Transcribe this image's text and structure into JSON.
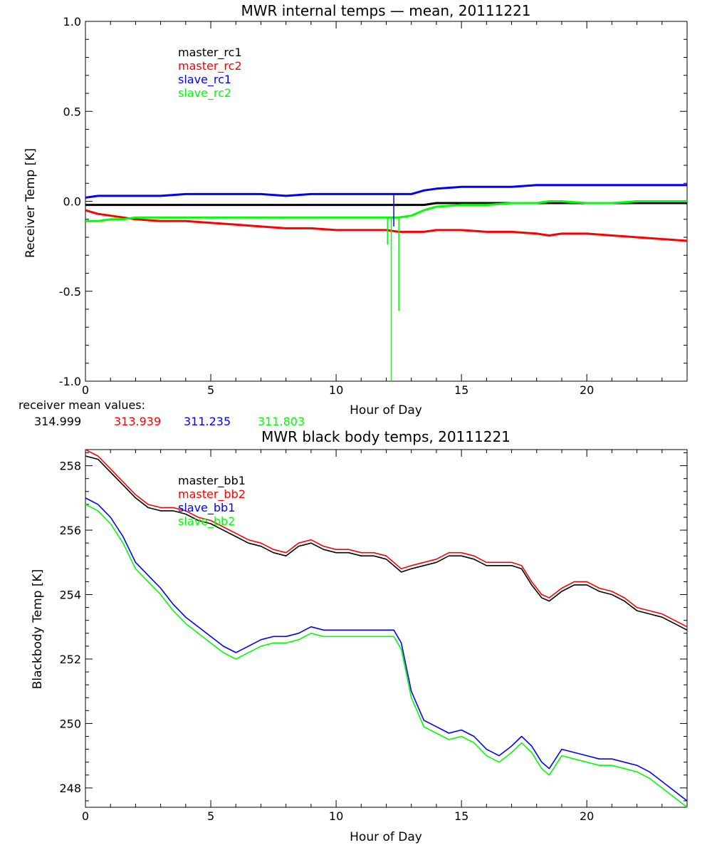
{
  "chart_data": [
    {
      "type": "line",
      "title": "MWR internal temps — mean, 20111221",
      "xlabel": "Hour of Day",
      "ylabel": "Receiver Temp [K]",
      "xlim": [
        0,
        24
      ],
      "ylim": [
        -1.0,
        1.0
      ],
      "xticks": [
        0,
        5,
        10,
        15,
        20
      ],
      "xtick_labels": [
        "0",
        "5",
        "10",
        "15",
        "20"
      ],
      "yticks": [
        -1.0,
        -0.5,
        0.0,
        0.5,
        1.0
      ],
      "ytick_labels": [
        "-1.0",
        "-0.5",
        "0.0",
        "0.5",
        "1.0"
      ],
      "grid": false,
      "legend": "upper-left",
      "x": [
        0,
        0.5,
        1,
        1.5,
        2,
        3,
        4,
        5,
        6,
        7,
        8,
        9,
        10,
        11,
        12,
        12.5,
        13,
        13.5,
        14,
        15,
        16,
        17,
        18,
        18.5,
        19,
        20,
        21,
        22,
        23,
        24
      ],
      "series": [
        {
          "name": "master_rc1",
          "color": "#000000",
          "values": [
            -0.02,
            -0.02,
            -0.02,
            -0.02,
            -0.02,
            -0.02,
            -0.02,
            -0.02,
            -0.02,
            -0.02,
            -0.02,
            -0.02,
            -0.02,
            -0.02,
            -0.02,
            -0.02,
            -0.02,
            -0.02,
            -0.01,
            -0.01,
            -0.01,
            -0.01,
            -0.01,
            -0.01,
            -0.01,
            -0.01,
            -0.01,
            -0.01,
            -0.01,
            -0.01
          ]
        },
        {
          "name": "master_rc2",
          "color": "#ff0000",
          "values": [
            -0.05,
            -0.07,
            -0.08,
            -0.09,
            -0.1,
            -0.11,
            -0.11,
            -0.12,
            -0.13,
            -0.14,
            -0.15,
            -0.15,
            -0.16,
            -0.16,
            -0.16,
            -0.17,
            -0.17,
            -0.17,
            -0.16,
            -0.16,
            -0.17,
            -0.17,
            -0.18,
            -0.19,
            -0.18,
            -0.18,
            -0.19,
            -0.2,
            -0.21,
            -0.22
          ]
        },
        {
          "name": "slave_rc1",
          "color": "#0000ff",
          "values": [
            0.02,
            0.03,
            0.03,
            0.03,
            0.03,
            0.03,
            0.04,
            0.04,
            0.04,
            0.04,
            0.03,
            0.04,
            0.04,
            0.04,
            0.04,
            0.04,
            0.04,
            0.06,
            0.07,
            0.08,
            0.08,
            0.08,
            0.09,
            0.09,
            0.09,
            0.09,
            0.09,
            0.09,
            0.09,
            0.09
          ]
        },
        {
          "name": "slave_rc2",
          "color": "#00ff00",
          "values": [
            -0.11,
            -0.11,
            -0.1,
            -0.1,
            -0.09,
            -0.09,
            -0.09,
            -0.09,
            -0.09,
            -0.09,
            -0.09,
            -0.09,
            -0.09,
            -0.09,
            -0.09,
            -0.09,
            -0.08,
            -0.05,
            -0.03,
            -0.02,
            -0.02,
            -0.01,
            -0.01,
            0.0,
            0.0,
            -0.01,
            -0.01,
            0.0,
            0.0,
            0.0
          ]
        }
      ],
      "spikes": [
        {
          "series": "slave_rc2",
          "x": 12.05,
          "min": -0.24
        },
        {
          "series": "slave_rc2",
          "x": 12.2,
          "min": -1.0
        },
        {
          "series": "slave_rc2",
          "x": 12.5,
          "min": -0.61
        },
        {
          "series": "slave_rc1",
          "x": 12.3,
          "min": -0.14
        }
      ],
      "annotation_label": "receiver mean values:",
      "annotation_values": [
        {
          "text": "314.999",
          "color": "#000000"
        },
        {
          "text": "313.939",
          "color": "#ff0000"
        },
        {
          "text": "311.235",
          "color": "#0000ff"
        },
        {
          "text": "311.803",
          "color": "#00ff00"
        }
      ]
    },
    {
      "type": "line",
      "title": "MWR black body temps, 20111221",
      "xlabel": "Hour of Day",
      "ylabel": "Blackbody Temp [K]",
      "xlim": [
        0,
        24
      ],
      "ylim": [
        247.4,
        258.5
      ],
      "xticks": [
        0,
        5,
        10,
        15,
        20
      ],
      "xtick_labels": [
        "0",
        "5",
        "10",
        "15",
        "20"
      ],
      "yticks": [
        248,
        250,
        252,
        254,
        256,
        258
      ],
      "ytick_labels": [
        "248",
        "250",
        "252",
        "254",
        "256",
        "258"
      ],
      "grid": false,
      "legend": "upper-left",
      "x": [
        0,
        0.5,
        1,
        1.5,
        2,
        2.5,
        3,
        3.5,
        4,
        4.5,
        5,
        5.5,
        6,
        6.5,
        7,
        7.5,
        8,
        8.5,
        9,
        9.5,
        10,
        10.5,
        11,
        11.5,
        12,
        12.3,
        12.6,
        13,
        13.5,
        14,
        14.5,
        15,
        15.5,
        16,
        16.5,
        17,
        17.4,
        17.8,
        18.2,
        18.5,
        19,
        19.5,
        20,
        20.5,
        21,
        21.5,
        22,
        22.5,
        23,
        23.5,
        24
      ],
      "series": [
        {
          "name": "master_bb1",
          "color": "#000000",
          "values": [
            258.3,
            258.2,
            257.8,
            257.4,
            257.0,
            256.7,
            256.6,
            256.6,
            256.5,
            256.3,
            256.2,
            256.0,
            255.8,
            255.6,
            255.5,
            255.3,
            255.2,
            255.5,
            255.6,
            255.4,
            255.3,
            255.3,
            255.2,
            255.2,
            255.1,
            254.9,
            254.7,
            254.8,
            254.9,
            255.0,
            255.2,
            255.2,
            255.1,
            254.9,
            254.9,
            254.9,
            254.8,
            254.3,
            253.9,
            253.8,
            254.1,
            254.3,
            254.3,
            254.1,
            254.0,
            253.8,
            253.5,
            253.4,
            253.3,
            253.1,
            252.9
          ]
        },
        {
          "name": "master_bb2",
          "color": "#ff0000",
          "values": [
            258.5,
            258.3,
            257.9,
            257.5,
            257.1,
            256.8,
            256.7,
            256.7,
            256.6,
            256.4,
            256.3,
            256.1,
            255.9,
            255.7,
            255.6,
            255.4,
            255.3,
            255.6,
            255.7,
            255.5,
            255.4,
            255.4,
            255.3,
            255.3,
            255.2,
            255.0,
            254.8,
            254.9,
            255.0,
            255.1,
            255.3,
            255.3,
            255.2,
            255.0,
            255.0,
            255.0,
            254.9,
            254.4,
            254.0,
            253.9,
            254.2,
            254.4,
            254.4,
            254.2,
            254.1,
            253.9,
            253.6,
            253.5,
            253.4,
            253.2,
            253.0
          ]
        },
        {
          "name": "slave_bb1",
          "color": "#0000ff",
          "values": [
            257.0,
            256.8,
            256.4,
            255.8,
            255.0,
            254.6,
            254.2,
            253.7,
            253.3,
            253.0,
            252.7,
            252.4,
            252.2,
            252.4,
            252.6,
            252.7,
            252.7,
            252.8,
            253.0,
            252.9,
            252.9,
            252.9,
            252.9,
            252.9,
            252.9,
            252.9,
            252.5,
            251.0,
            250.1,
            249.9,
            249.7,
            249.8,
            249.6,
            249.2,
            249.0,
            249.3,
            249.6,
            249.3,
            248.8,
            248.6,
            249.2,
            249.1,
            249.0,
            248.9,
            248.9,
            248.8,
            248.7,
            248.5,
            248.2,
            247.9,
            247.6
          ]
        },
        {
          "name": "slave_bb2",
          "color": "#00ff00",
          "values": [
            256.8,
            256.6,
            256.2,
            255.6,
            254.8,
            254.4,
            254.0,
            253.5,
            253.1,
            252.8,
            252.5,
            252.2,
            252.0,
            252.2,
            252.4,
            252.5,
            252.5,
            252.6,
            252.8,
            252.7,
            252.7,
            252.7,
            252.7,
            252.7,
            252.7,
            252.7,
            252.3,
            250.8,
            249.9,
            249.7,
            249.5,
            249.6,
            249.4,
            249.0,
            248.8,
            249.1,
            249.4,
            249.1,
            248.6,
            248.4,
            249.0,
            248.9,
            248.8,
            248.7,
            248.7,
            248.6,
            248.5,
            248.3,
            248.0,
            247.7,
            247.4
          ]
        }
      ]
    }
  ]
}
